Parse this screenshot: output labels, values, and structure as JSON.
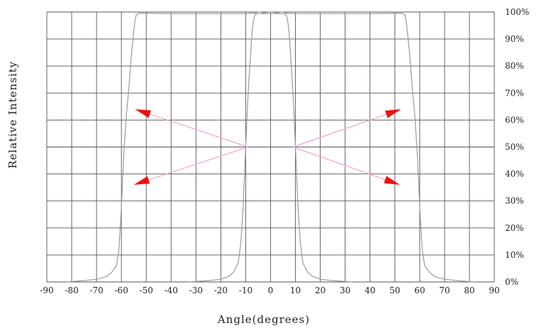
{
  "chart_data": {
    "type": "line",
    "xlabel": "Angle(degrees)",
    "ylabel": "Relative Intensity",
    "xlim": [
      -90,
      90
    ],
    "ylim": [
      0,
      100
    ],
    "x_ticks": [
      -90,
      -80,
      -70,
      -60,
      -50,
      -40,
      -30,
      -20,
      -10,
      0,
      10,
      20,
      30,
      40,
      50,
      60,
      70,
      80,
      90
    ],
    "x_tick_labels": [
      "-90",
      "-80",
      "-70",
      "-60",
      "-50",
      "-40",
      "-30",
      "-20",
      "-10",
      "0",
      "10",
      "20",
      "30",
      "40",
      "50",
      "60",
      "70",
      "80",
      "90"
    ],
    "y_ticks": [
      0,
      10,
      20,
      30,
      40,
      50,
      60,
      70,
      80,
      90,
      100
    ],
    "y_tick_labels": [
      "0%",
      "10%",
      "20%",
      "30%",
      "40%",
      "50%",
      "60%",
      "70%",
      "80%",
      "90%",
      "100%"
    ],
    "y_axis_side": "right",
    "grid": true,
    "line_color": "#9a9a9a",
    "arrow_line_color": "#f0a6d2",
    "arrowhead_color": "#ee1111",
    "series": [
      {
        "x": [
          -82,
          -75,
          -70,
          -66,
          -64,
          -62,
          -61,
          -60,
          -59,
          -58,
          -57,
          -56,
          -55,
          -54.5,
          -54,
          -53,
          -50,
          -40,
          -30,
          -20,
          -10,
          -6,
          -5,
          -4,
          -3,
          -2,
          0,
          2,
          3,
          4,
          5,
          6,
          10,
          20,
          30,
          40,
          50,
          53,
          54,
          54.5,
          55,
          56,
          57,
          58,
          59,
          60,
          61,
          62,
          64,
          66,
          70,
          75,
          82
        ],
        "y": [
          0,
          0.5,
          1,
          2,
          3.5,
          6,
          12,
          28,
          48,
          62,
          72,
          84,
          93,
          97,
          99,
          99.5,
          99.5,
          99.4,
          99.4,
          99.4,
          99.4,
          99.6,
          100,
          100,
          99.6,
          99.8,
          100,
          99.8,
          99.6,
          100,
          100,
          99.6,
          99.4,
          99.4,
          99.4,
          99.4,
          99.5,
          99.5,
          99,
          97,
          93,
          84,
          72,
          62,
          48,
          28,
          12,
          6,
          3.5,
          2,
          1,
          0.5,
          0
        ]
      },
      {
        "x": [
          -33,
          -25,
          -20,
          -17,
          -15,
          -13,
          -12,
          -11,
          -10,
          -9,
          -8,
          -7.5,
          -7,
          -6.5,
          -6,
          -5,
          -4,
          -2,
          0,
          2,
          4,
          5,
          6,
          6.5,
          7,
          7.5,
          8,
          9,
          10,
          11,
          12,
          13,
          15,
          17,
          20,
          25,
          33
        ],
        "y": [
          0,
          0.5,
          1,
          2,
          3.5,
          7,
          14,
          28,
          50,
          70,
          85,
          92,
          96,
          98.5,
          99.2,
          99.4,
          99.4,
          99.4,
          99.4,
          99.4,
          99.4,
          99.4,
          99.2,
          98.5,
          96,
          92,
          85,
          70,
          50,
          28,
          14,
          7,
          3.5,
          2,
          1,
          0.5,
          0
        ]
      }
    ],
    "annotations": [
      {
        "from": [
          -9,
          50
        ],
        "to": [
          -54.5,
          64
        ]
      },
      {
        "from": [
          -9,
          50
        ],
        "to": [
          -55,
          36
        ]
      },
      {
        "from": [
          9,
          50
        ],
        "to": [
          52.5,
          64
        ]
      },
      {
        "from": [
          9,
          50
        ],
        "to": [
          52,
          36
        ]
      }
    ]
  }
}
